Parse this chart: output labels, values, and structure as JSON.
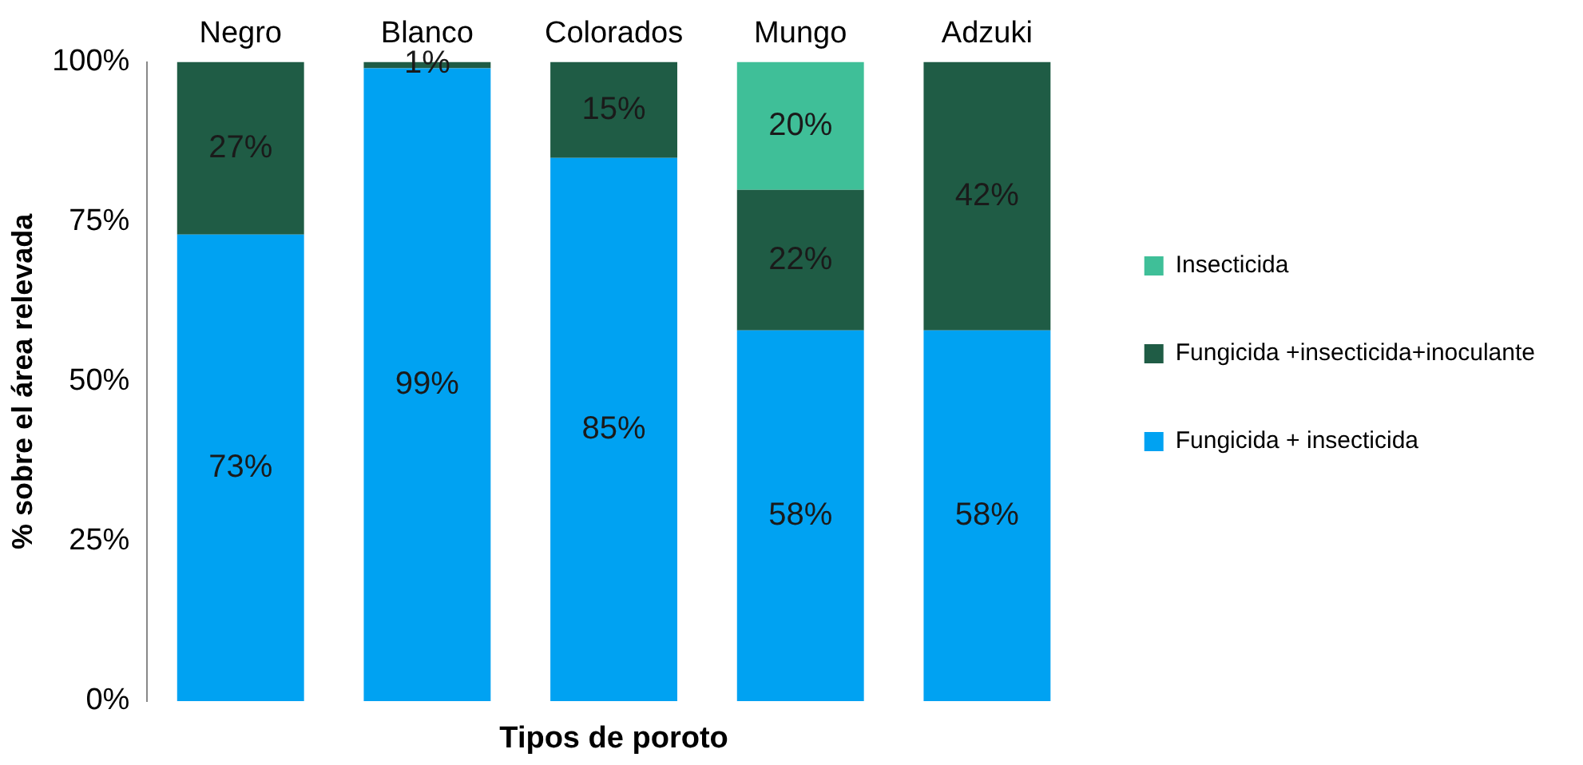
{
  "chart_data": {
    "type": "bar",
    "stacked": true,
    "xlabel": "Tipos de poroto",
    "ylabel": "% sobre el área relevada",
    "categories": [
      "Negro",
      "Blanco",
      "Colorados",
      "Mungo",
      "Adzuki"
    ],
    "series": [
      {
        "name": "Fungicida + insecticida",
        "color": "#00a2f2",
        "values": [
          73,
          99,
          85,
          58,
          58
        ],
        "value_labels": [
          "73%",
          "99%",
          "85%",
          "58%",
          "58%"
        ]
      },
      {
        "name": "Fungicida +insecticida+inoculante",
        "color": "#1f5c45",
        "values": [
          27,
          1,
          15,
          22,
          42
        ],
        "value_labels": [
          "27%",
          "1%",
          "15%",
          "22%",
          "42%"
        ]
      },
      {
        "name": "Insecticida",
        "color": "#3fbf98",
        "values": [
          null,
          null,
          null,
          20,
          null
        ],
        "value_labels": [
          null,
          null,
          null,
          "20%",
          null
        ]
      }
    ],
    "ylim": [
      0,
      100
    ],
    "yticks": [
      {
        "value": 0,
        "label": "0%"
      },
      {
        "value": 25,
        "label": "25%"
      },
      {
        "value": 50,
        "label": "50%"
      },
      {
        "value": 75,
        "label": "75%"
      },
      {
        "value": 100,
        "label": "100%"
      }
    ],
    "grid": false,
    "legend": "right"
  }
}
